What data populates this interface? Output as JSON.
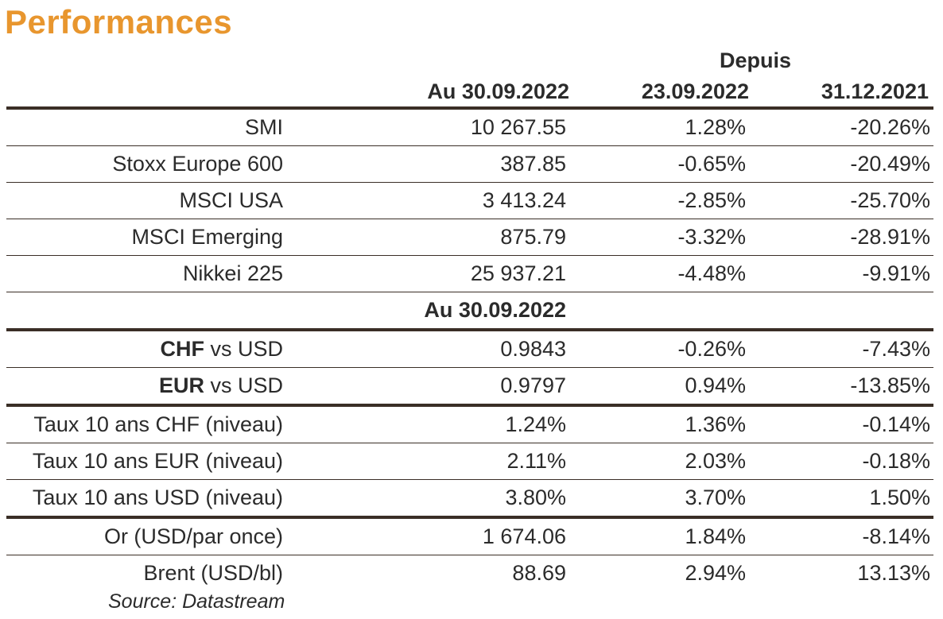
{
  "title": "Performances",
  "header": {
    "depuis": "Depuis",
    "col1": "Au 30.09.2022",
    "col2": "23.09.2022",
    "col3": "31.12.2021"
  },
  "rows_indices": [
    {
      "label": "SMI",
      "v1": "10 267.55",
      "v2": "1.28%",
      "v3": "-20.26%"
    },
    {
      "label": "Stoxx Europe 600",
      "v1": "387.85",
      "v2": "-0.65%",
      "v3": "-20.49%"
    },
    {
      "label": "MSCI USA",
      "v1": "3 413.24",
      "v2": "-2.85%",
      "v3": "-25.70%"
    },
    {
      "label": "MSCI Emerging",
      "v1": "875.79",
      "v2": "-3.32%",
      "v3": "-28.91%"
    },
    {
      "label": "Nikkei 225",
      "v1": "25 937.21",
      "v2": "-4.48%",
      "v3": "-9.91%"
    }
  ],
  "subheader": "Au 30.09.2022",
  "rows_fx": [
    {
      "bold": "CHF",
      "label": " vs USD",
      "v1": "0.9843",
      "v2": "-0.26%",
      "v3": "-7.43%"
    },
    {
      "bold": "EUR",
      "label": " vs USD",
      "v1": "0.9797",
      "v2": "0.94%",
      "v3": "-13.85%"
    }
  ],
  "rows_rates": [
    {
      "label": "Taux 10 ans CHF (niveau)",
      "v1": "1.24%",
      "v2": "1.36%",
      "v3": "-0.14%"
    },
    {
      "label": "Taux 10 ans EUR (niveau)",
      "v1": "2.11%",
      "v2": "2.03%",
      "v3": "-0.18%"
    },
    {
      "label": "Taux 10 ans USD (niveau)",
      "v1": "3.80%",
      "v2": "3.70%",
      "v3": "1.50%"
    }
  ],
  "rows_commodities": [
    {
      "label": "Or (USD/par once)",
      "v1": "1 674.06",
      "v2": "1.84%",
      "v3": "-8.14%"
    },
    {
      "label": "Brent (USD/bl)",
      "v1": "88.69",
      "v2": "2.94%",
      "v3": "13.13%"
    }
  ],
  "source": "Source: Datastream"
}
